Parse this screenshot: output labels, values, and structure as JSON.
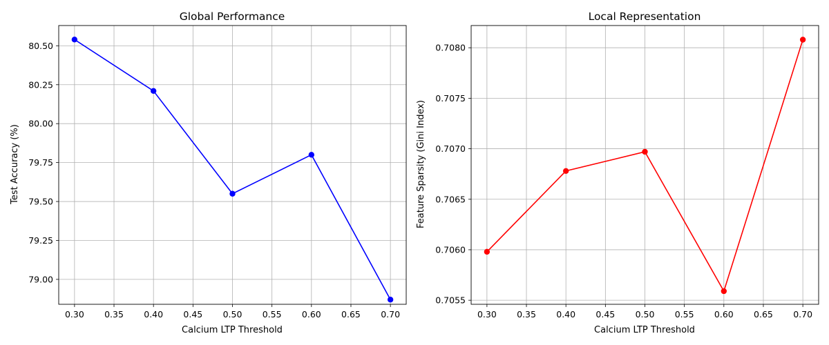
{
  "chart_data": [
    {
      "type": "line",
      "title": "Global Performance",
      "xlabel": "Calcium LTP Threshold",
      "ylabel": "Test Accuracy (%)",
      "xlim": [
        0.28,
        0.72
      ],
      "ylim": [
        78.84,
        80.63
      ],
      "xticks": [
        "0.30",
        "0.35",
        "0.40",
        "0.45",
        "0.50",
        "0.55",
        "0.60",
        "0.65",
        "0.70"
      ],
      "yticks": [
        "79.00",
        "79.25",
        "79.50",
        "79.75",
        "80.00",
        "80.25",
        "80.50"
      ],
      "grid": true,
      "color": "#0000ff",
      "series": [
        {
          "x": [
            0.3,
            0.4,
            0.5,
            0.6,
            0.7
          ],
          "y": [
            80.54,
            80.21,
            79.55,
            79.8,
            78.87
          ]
        }
      ]
    },
    {
      "type": "line",
      "title": "Local Representation",
      "xlabel": "Calcium LTP Threshold",
      "ylabel": "Feature Sparsity (Gini Index)",
      "xlim": [
        0.28,
        0.72
      ],
      "ylim": [
        0.70546,
        0.70822
      ],
      "xticks": [
        "0.30",
        "0.35",
        "0.40",
        "0.45",
        "0.50",
        "0.55",
        "0.60",
        "0.65",
        "0.70"
      ],
      "yticks": [
        "0.7055",
        "0.7060",
        "0.7065",
        "0.7070",
        "0.7075",
        "0.7080"
      ],
      "grid": true,
      "color": "#ff0000",
      "series": [
        {
          "x": [
            0.3,
            0.4,
            0.5,
            0.6,
            0.7
          ],
          "y": [
            0.70598,
            0.70678,
            0.70697,
            0.70559,
            0.70808
          ]
        }
      ]
    }
  ]
}
